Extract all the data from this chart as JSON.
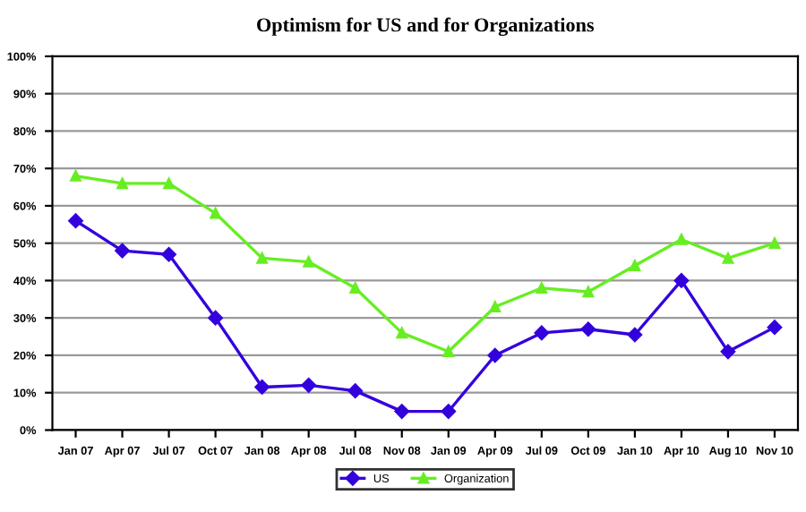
{
  "chart_data": {
    "type": "line",
    "title": "Optimism for US and for Organizations",
    "categories": [
      "Jan 07",
      "Apr 07",
      "Jul 07",
      "Oct 07",
      "Jan 08",
      "Apr 08",
      "Jul 08",
      "Nov 08",
      "Jan 09",
      "Apr 09",
      "Jul 09",
      "Oct 09",
      "Jan 10",
      "Apr 10",
      "Aug 10",
      "Nov 10"
    ],
    "series": [
      {
        "name": "US",
        "color": "#3300dd",
        "marker": "diamond",
        "values": [
          56,
          48,
          47,
          30,
          11.5,
          12,
          10.5,
          5,
          5,
          20,
          26,
          27,
          25.5,
          40,
          21,
          27.5
        ]
      },
      {
        "name": "Organization",
        "color": "#66ee22",
        "marker": "triangle",
        "values": [
          68,
          66,
          66,
          58,
          46,
          45,
          38,
          26,
          21,
          33,
          38,
          37,
          44,
          51,
          46,
          50
        ]
      }
    ],
    "ylim": [
      0,
      100
    ],
    "yticks": [
      {
        "value": 0,
        "label": "0%"
      },
      {
        "value": 10,
        "label": "10%"
      },
      {
        "value": 20,
        "label": "20%"
      },
      {
        "value": 30,
        "label": "30%"
      },
      {
        "value": 40,
        "label": "40%"
      },
      {
        "value": 50,
        "label": "50%"
      },
      {
        "value": 60,
        "label": "60%"
      },
      {
        "value": 70,
        "label": "70%"
      },
      {
        "value": 80,
        "label": "80%"
      },
      {
        "value": 90,
        "label": "90%"
      },
      {
        "value": 100,
        "label": "100%"
      }
    ],
    "grid": "y",
    "legend": "bottom"
  }
}
